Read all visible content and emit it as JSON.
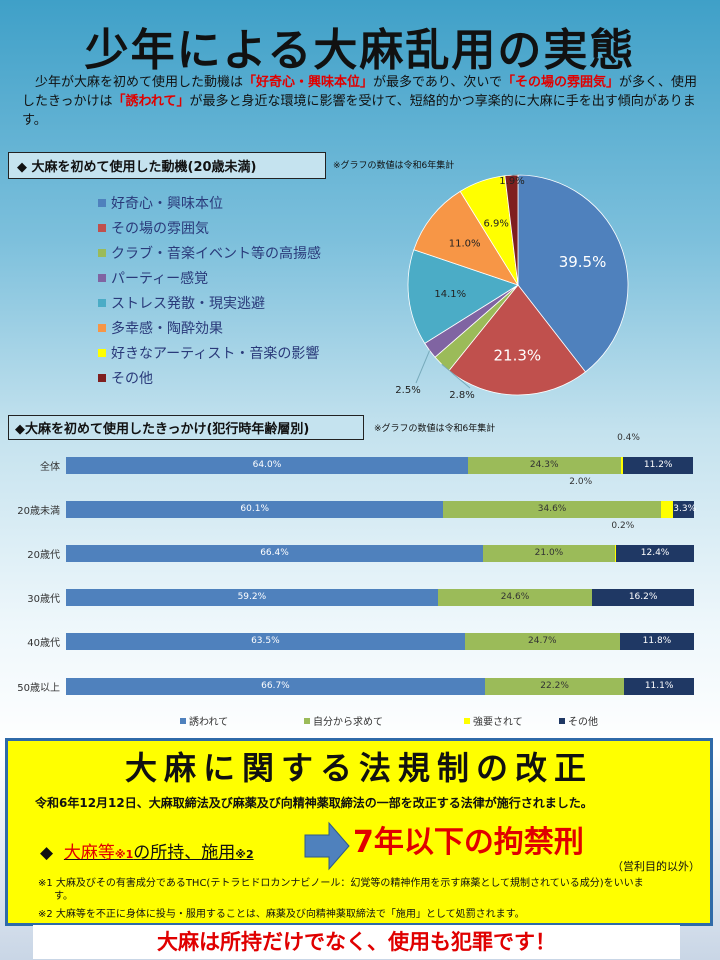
{
  "title": "少年による大麻乱用の実態",
  "intro": {
    "p1": "　少年が大麻を初めて使用した動機は",
    "h1": "「好奇心・興味本位」",
    "p2": "が最多であり、次いで",
    "h2": "「その場の雰囲気」",
    "p3": "が多く、使用したきっかけは",
    "h3": "「誘われて」",
    "p4": "が最多と身近な環境に影響を受けて、短絡的かつ享楽的に大麻に手を出す傾向があります。"
  },
  "section1": {
    "label": "◆  大麻を初めて使用した動機(20歳未満)",
    "note": "※グラフの数値は令和6年集計"
  },
  "section2": {
    "label": "◆大麻を初めて使用したきっかけ(犯行時年齢層別)",
    "note": "※グラフの数値は令和6年集計"
  },
  "chart_data": [
    {
      "type": "pie",
      "categories": [
        "好奇心・興味本位",
        "その場の雰囲気",
        "クラブ・音楽イベント等の高揚感",
        "パーティー感覚",
        "ストレス発散・現実逃避",
        "多幸感・陶酔効果",
        "好きなアーティスト・音楽の影響",
        "その他"
      ],
      "values": [
        39.5,
        21.3,
        2.8,
        2.5,
        14.1,
        11.0,
        6.9,
        1.9
      ],
      "labels": [
        "39.5%",
        "21.3%",
        "2.8%",
        "2.5%",
        "14.1%",
        "11.0%",
        "6.9%",
        "1.9%"
      ],
      "colors": [
        "#4f81bd",
        "#c0504d",
        "#9bbb59",
        "#8064a2",
        "#4bacc6",
        "#f79646",
        "#ffff00",
        "#7f1f1f"
      ],
      "legend": "left"
    },
    {
      "type": "bar",
      "stacked": true,
      "orientation": "horizontal",
      "categories": [
        "全体",
        "20歳未満",
        "20歳代",
        "30歳代",
        "40歳代",
        "50歳以上"
      ],
      "series": [
        {
          "name": "誘われて",
          "values": [
            64.0,
            60.1,
            66.4,
            59.2,
            63.5,
            66.7
          ],
          "color": "#4f81bd"
        },
        {
          "name": "自分から求めて",
          "values": [
            24.3,
            34.6,
            21.0,
            24.6,
            24.7,
            22.2
          ],
          "color": "#9bbb59"
        },
        {
          "name": "強要されて",
          "values": [
            0.4,
            2.0,
            0.2,
            0,
            0,
            0
          ],
          "color": "#ffff00"
        },
        {
          "name": "その他",
          "values": [
            11.2,
            3.3,
            12.4,
            16.2,
            11.8,
            11.1
          ],
          "color": "#1f3864"
        }
      ],
      "legend": "bottom"
    }
  ],
  "law": {
    "title": "大麻に関する法規制の改正",
    "enacted": "令和6年12月12日、大麻取締法及び麻薬及び向精神薬取締法の一部を改正する法律が施行されました。",
    "item_bullet": "◆",
    "item_a": "大麻等",
    "item_a_note": "※1",
    "item_b": "の所持、施用",
    "item_b_note": "※2",
    "penalty": "7年以下の拘禁刑",
    "penalty_note": "（営利目的以外）",
    "note1": "※1  大麻及びその有害成分であるTHC(テトラヒドロカンナビノール：幻覚等の精神作用を示す麻薬として規制されている成分)をいいます。",
    "note2": "※2  大麻等を不正に身体に投与・服用することは、麻薬及び向精神薬取締法で「施用」として処罰されます。"
  },
  "banner": "大麻は所持だけでなく、使用も犯罪です！"
}
